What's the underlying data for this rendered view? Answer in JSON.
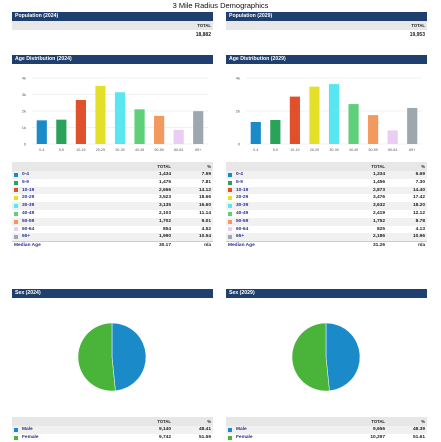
{
  "page_title": "3 Mile Radius Demographics",
  "colors": {
    "header_bg": "#1f3f6e",
    "label_text": "#2b2f8c",
    "male": "#1b8ac8",
    "female": "#4ab33a"
  },
  "population_2024": {
    "title": "Population (2024)",
    "total_header": "TOTAL",
    "total_value": "18,882"
  },
  "population_2029": {
    "title": "Population (2029)",
    "total_header": "TOTAL",
    "total_value": "19,953"
  },
  "age_2024": {
    "title": "Age Distribution (2024)",
    "total_header": "TOTAL",
    "pct_header": "%",
    "rows": [
      {
        "label": "0-4",
        "total": "1,434",
        "pct": "7.59",
        "color": "#1b8ac8"
      },
      {
        "label": "5-9",
        "total": "1,475",
        "pct": "7.81",
        "color": "#2aa35a"
      },
      {
        "label": "10-19",
        "total": "2,666",
        "pct": "14.12",
        "color": "#e0502a"
      },
      {
        "label": "20-29",
        "total": "3,523",
        "pct": "18.66",
        "color": "#e4e02a"
      },
      {
        "label": "30-39",
        "total": "3,135",
        "pct": "16.60",
        "color": "#58e6f0"
      },
      {
        "label": "40-49",
        "total": "2,103",
        "pct": "11.14",
        "color": "#5ed07a"
      },
      {
        "label": "50-59",
        "total": "1,702",
        "pct": "9.01",
        "color": "#f29a5e"
      },
      {
        "label": "60-64",
        "total": "854",
        "pct": "4.52",
        "color": "#e9cdf3"
      },
      {
        "label": "65+",
        "total": "1,990",
        "pct": "10.54",
        "color": "#9ea7ad"
      }
    ],
    "median_label": "Median Age",
    "median_value": "30.17",
    "median_pct": "n/a"
  },
  "age_2029": {
    "title": "Age Distribution (2029)",
    "total_header": "TOTAL",
    "pct_header": "%",
    "rows": [
      {
        "label": "0-4",
        "total": "1,334",
        "pct": "6.69",
        "color": "#1b8ac8"
      },
      {
        "label": "5-9",
        "total": "1,456",
        "pct": "7.30",
        "color": "#2aa35a"
      },
      {
        "label": "10-19",
        "total": "2,873",
        "pct": "14.40",
        "color": "#e0502a"
      },
      {
        "label": "20-29",
        "total": "3,476",
        "pct": "17.42",
        "color": "#e4e02a"
      },
      {
        "label": "30-39",
        "total": "3,632",
        "pct": "18.20",
        "color": "#58e6f0"
      },
      {
        "label": "40-49",
        "total": "2,419",
        "pct": "12.12",
        "color": "#5ed07a"
      },
      {
        "label": "50-59",
        "total": "1,752",
        "pct": "8.78",
        "color": "#f29a5e"
      },
      {
        "label": "60-64",
        "total": "825",
        "pct": "4.13",
        "color": "#e9cdf3"
      },
      {
        "label": "65+",
        "total": "2,186",
        "pct": "10.96",
        "color": "#9ea7ad"
      }
    ],
    "median_label": "Median Age",
    "median_value": "31.26",
    "median_pct": "n/a"
  },
  "sex_2024": {
    "title": "Sex (2024)",
    "total_header": "TOTAL",
    "pct_header": "%",
    "rows": [
      {
        "label": "Male",
        "total": "9,140",
        "pct": "48.41",
        "color": "#1b8ac8"
      },
      {
        "label": "Female",
        "total": "9,742",
        "pct": "51.59",
        "color": "#4ab33a"
      }
    ]
  },
  "sex_2029": {
    "title": "Sex (2029)",
    "total_header": "TOTAL",
    "pct_header": "%",
    "rows": [
      {
        "label": "Male",
        "total": "9,656",
        "pct": "48.39",
        "color": "#1b8ac8"
      },
      {
        "label": "Female",
        "total": "10,297",
        "pct": "51.61",
        "color": "#4ab33a"
      }
    ]
  },
  "chart_data": [
    {
      "type": "bar",
      "categories": [
        "0-4",
        "5-9",
        "10-19",
        "20-29",
        "30-39",
        "40-49",
        "50-59",
        "60-64",
        "65+"
      ],
      "values": [
        1434,
        1475,
        2666,
        3523,
        3135,
        2103,
        1702,
        854,
        1990
      ],
      "ylim": [
        0,
        4000
      ],
      "yticks": [
        "0",
        "1k",
        "2k",
        "3k",
        "4k"
      ],
      "colors": [
        "#1b8ac8",
        "#2aa35a",
        "#e0502a",
        "#e4e02a",
        "#58e6f0",
        "#5ed07a",
        "#f29a5e",
        "#e9cdf3",
        "#9ea7ad"
      ],
      "grid": true
    },
    {
      "type": "bar",
      "categories": [
        "0-4",
        "5-9",
        "10-19",
        "20-29",
        "30-39",
        "40-49",
        "50-59",
        "60-64",
        "65+"
      ],
      "values": [
        1334,
        1456,
        2873,
        3476,
        3632,
        2419,
        1752,
        825,
        2186
      ],
      "ylim": [
        0,
        4000
      ],
      "yticks": [
        "0",
        "2k",
        "4k"
      ],
      "colors": [
        "#1b8ac8",
        "#2aa35a",
        "#e0502a",
        "#e4e02a",
        "#58e6f0",
        "#5ed07a",
        "#f29a5e",
        "#e9cdf3",
        "#9ea7ad"
      ],
      "grid": true
    },
    {
      "type": "pie",
      "categories": [
        "Male",
        "Female"
      ],
      "values": [
        48.41,
        51.59
      ],
      "colors": [
        "#1b8ac8",
        "#4ab33a"
      ]
    },
    {
      "type": "pie",
      "categories": [
        "Male",
        "Female"
      ],
      "values": [
        48.39,
        51.61
      ],
      "colors": [
        "#1b8ac8",
        "#4ab33a"
      ]
    }
  ]
}
